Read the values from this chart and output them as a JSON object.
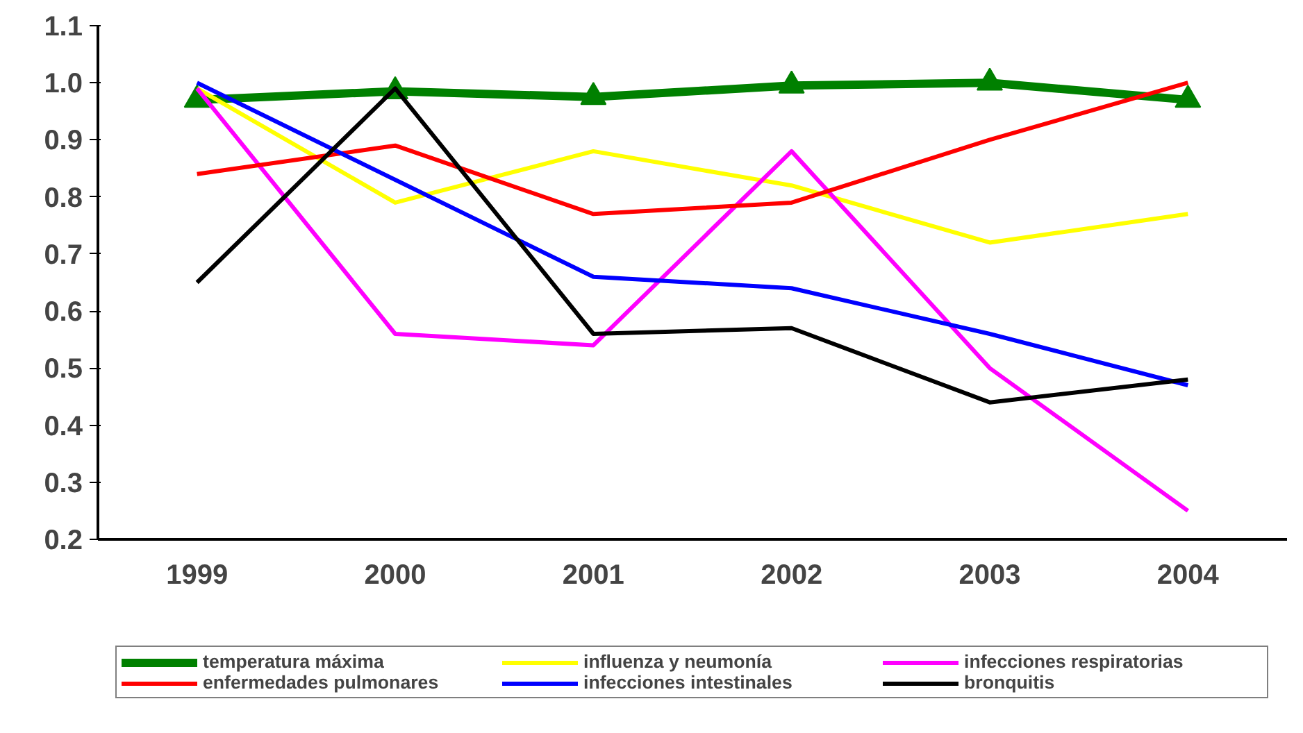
{
  "chart_data": {
    "type": "line",
    "categories": [
      "1999",
      "2000",
      "2001",
      "2002",
      "2003",
      "2004"
    ],
    "ylim": [
      0.2,
      1.1
    ],
    "yticks": [
      {
        "value": 0.2,
        "label": "0.2"
      },
      {
        "value": 0.3,
        "label": "0.3"
      },
      {
        "value": 0.4,
        "label": "0.4"
      },
      {
        "value": 0.5,
        "label": "0.5"
      },
      {
        "value": 0.6,
        "label": "0.6"
      },
      {
        "value": 0.7,
        "label": "0.7"
      },
      {
        "value": 0.8,
        "label": "0.8"
      },
      {
        "value": 0.9,
        "label": "0.9"
      },
      {
        "value": 1.0,
        "label": "1.0"
      },
      {
        "value": 1.1,
        "label": "1.1"
      }
    ],
    "grid": false,
    "legend": "bottom",
    "line_style": "solid",
    "series": [
      {
        "name": "temperatura máxima",
        "color": "#008000",
        "marker": "triangle",
        "values": [
          0.97,
          0.985,
          0.975,
          0.995,
          1.0,
          0.97
        ]
      },
      {
        "name": "influenza y neumonía",
        "color": "#ffff00",
        "marker": "none",
        "values": [
          0.99,
          0.79,
          0.88,
          0.82,
          0.72,
          0.77
        ]
      },
      {
        "name": "infecciones respiratorias",
        "color": "#ff00ff",
        "marker": "none",
        "values": [
          0.99,
          0.56,
          0.54,
          0.88,
          0.5,
          0.25
        ]
      },
      {
        "name": "enfermedades pulmonares",
        "color": "#ff0000",
        "marker": "none",
        "values": [
          0.84,
          0.89,
          0.77,
          0.79,
          0.9,
          1.0
        ]
      },
      {
        "name": "infecciones intestinales",
        "color": "#0000ff",
        "marker": "none",
        "values": [
          1.0,
          0.83,
          0.66,
          0.64,
          0.56,
          0.47
        ]
      },
      {
        "name": "bronquitis",
        "color": "#000000",
        "marker": "none",
        "values": [
          0.65,
          0.99,
          0.56,
          0.57,
          0.44,
          0.48
        ]
      }
    ]
  }
}
